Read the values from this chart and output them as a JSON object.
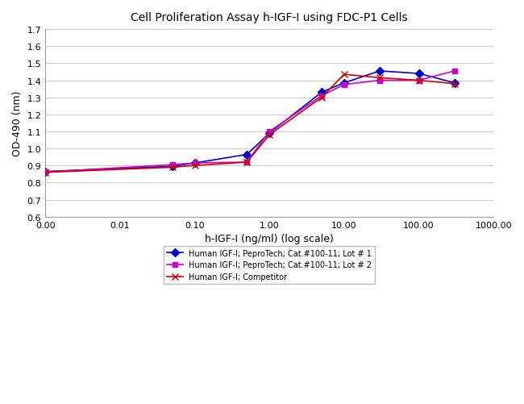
{
  "title": "Cell Proliferation Assay h-IGF-I using FDC-P1 Cells",
  "xlabel": "h-IGF-I (ng/ml) (log scale)",
  "ylabel": "OD-490 (nm)",
  "ylim": [
    0.6,
    1.7
  ],
  "yticks": [
    0.6,
    0.7,
    0.8,
    0.9,
    1.0,
    1.1,
    1.2,
    1.3,
    1.4,
    1.5,
    1.6,
    1.7
  ],
  "series": [
    {
      "label": "Human IGF-I; PeproTech; Cat.#100-11; Lot # 1",
      "color": "#0000CD",
      "marker": "D",
      "markersize": 5,
      "linewidth": 1.2,
      "x": [
        0.001,
        0.05,
        0.1,
        0.5,
        1.0,
        5.0,
        10.0,
        30.0,
        100.0,
        300.0
      ],
      "y": [
        0.865,
        0.895,
        0.915,
        0.965,
        1.09,
        1.33,
        1.385,
        1.455,
        1.44,
        1.385
      ]
    },
    {
      "label": "Human IGF-I; PeproTech; Cat.#100-11; Lot # 2",
      "color": "#CC00CC",
      "marker": "s",
      "markersize": 5,
      "linewidth": 1.2,
      "x": [
        0.001,
        0.05,
        0.1,
        0.5,
        1.0,
        5.0,
        10.0,
        30.0,
        100.0,
        300.0
      ],
      "y": [
        0.862,
        0.905,
        0.915,
        0.92,
        1.1,
        1.31,
        1.375,
        1.4,
        1.4,
        1.455
      ]
    },
    {
      "label": "Human IGF-I; Competitor",
      "color": "#CC0000",
      "marker": "x",
      "markersize": 6,
      "linewidth": 1.2,
      "x": [
        0.001,
        0.05,
        0.1,
        0.5,
        1.0,
        5.0,
        10.0,
        30.0,
        100.0,
        300.0
      ],
      "y": [
        0.86,
        0.89,
        0.9,
        0.92,
        1.08,
        1.3,
        1.435,
        1.415,
        1.4,
        1.38
      ]
    }
  ],
  "xtick_labels": [
    "0.00",
    "0.01",
    "0.10",
    "1.00",
    "10.00",
    "100.00",
    "1000.00"
  ],
  "xtick_positions": [
    0.001,
    0.01,
    0.1,
    1.0,
    10.0,
    100.0,
    1000.0
  ],
  "bg_color": "#ffffff",
  "plot_bg_color": "#ffffff",
  "grid_color": "#cccccc",
  "legend_fontsize": 7,
  "title_fontsize": 10,
  "axis_fontsize": 8
}
